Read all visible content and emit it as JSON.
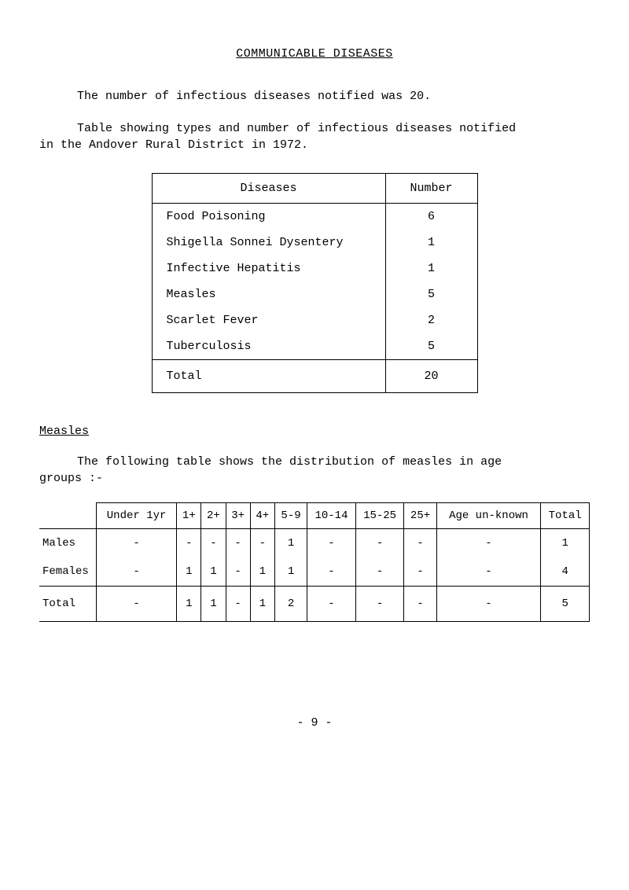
{
  "title": "COMMUNICABLE DISEASES",
  "intro1": "The number of infectious diseases notified was 20.",
  "intro2a": "Table showing types and number of infectious diseases notified",
  "intro2b": "in the Andover Rural District in 1972.",
  "diseases_table": {
    "headers": {
      "col1": "Diseases",
      "col2": "Number"
    },
    "rows": [
      {
        "disease": "Food Poisoning",
        "number": "6"
      },
      {
        "disease": "Shigella Sonnei Dysentery",
        "number": "1"
      },
      {
        "disease": "Infective Hepatitis",
        "number": "1"
      },
      {
        "disease": "Measles",
        "number": "5"
      },
      {
        "disease": "Scarlet Fever",
        "number": "2"
      },
      {
        "disease": "Tuberculosis",
        "number": "5"
      }
    ],
    "total": {
      "label": "Total",
      "value": "20"
    }
  },
  "measles_heading": "Measles",
  "measles_intro_a": "The following table shows the distribution of measles in age",
  "measles_intro_b": "groups  :-",
  "measles_table": {
    "columns": [
      "Under 1yr",
      "1+",
      "2+",
      "3+",
      "4+",
      "5-9",
      "10-14",
      "15-25",
      "25+",
      "Age un-known",
      "Total"
    ],
    "rows": [
      {
        "label": "Males",
        "cells": [
          "-",
          "-",
          "-",
          "-",
          "-",
          "1",
          "-",
          "-",
          "-",
          "-",
          "1"
        ]
      },
      {
        "label": "Females",
        "cells": [
          "-",
          "1",
          "1",
          "-",
          "1",
          "1",
          "-",
          "-",
          "-",
          "-",
          "4"
        ]
      }
    ],
    "total": {
      "label": "Total",
      "cells": [
        "-",
        "1",
        "1",
        "-",
        "1",
        "2",
        "-",
        "-",
        "-",
        "-",
        "5"
      ]
    }
  },
  "page_number": "- 9 -"
}
